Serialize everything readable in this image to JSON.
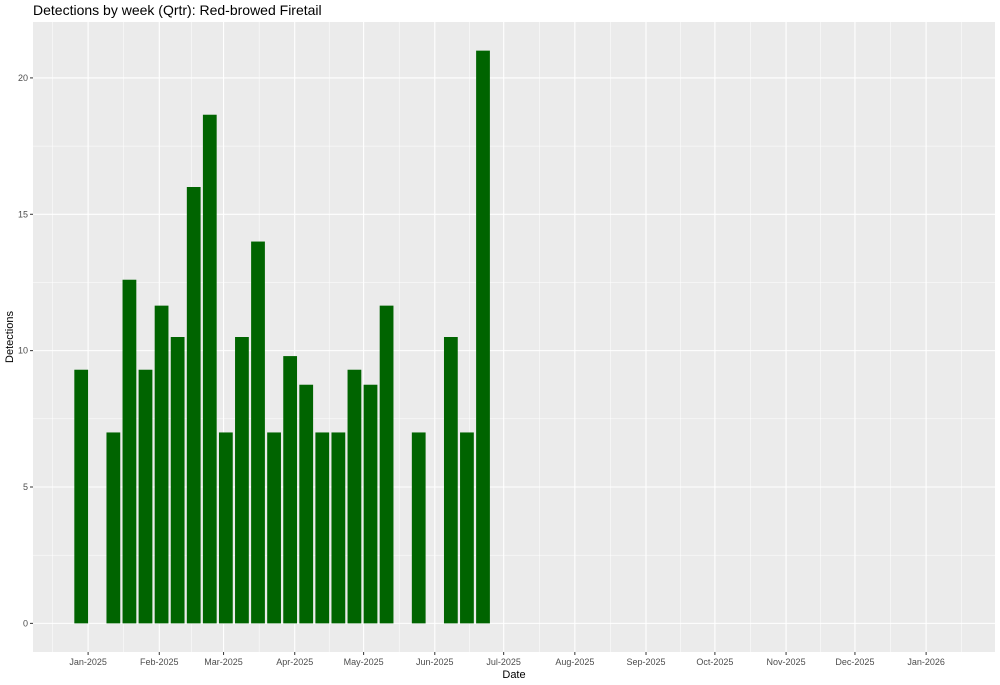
{
  "chart_data": {
    "type": "bar",
    "title": "Detections by week (Qrtr): Red-browed Firetail",
    "xlabel": "Date",
    "ylabel": "Detections",
    "x_axis": {
      "type": "date",
      "range": [
        "2024-12-08",
        "2026-01-31"
      ],
      "tick_dates": [
        "2025-01-01",
        "2025-02-01",
        "2025-03-01",
        "2025-04-01",
        "2025-05-01",
        "2025-06-01",
        "2025-07-01",
        "2025-08-01",
        "2025-09-01",
        "2025-10-01",
        "2025-11-01",
        "2025-12-01",
        "2026-01-01"
      ],
      "tick_labels": [
        "Jan-2025",
        "Feb-2025",
        "Mar-2025",
        "Apr-2025",
        "May-2025",
        "Jun-2025",
        "Jul-2025",
        "Aug-2025",
        "Sep-2025",
        "Oct-2025",
        "Nov-2025",
        "Dec-2025",
        "Jan-2026"
      ]
    },
    "y_axis": {
      "range": [
        -1.05,
        22.05
      ],
      "ticks": [
        0,
        5,
        10,
        15,
        20
      ],
      "tick_labels": [
        "0",
        "5",
        "10",
        "15",
        "20"
      ]
    },
    "grid": true,
    "legend": "none",
    "bar_color": "#006400",
    "panel_color": "#ebebeb",
    "grid_color": "#ffffff",
    "bar_width_days": 6,
    "bars": [
      {
        "date": "2024-12-29",
        "value": 9.3
      },
      {
        "date": "2025-01-12",
        "value": 7.0
      },
      {
        "date": "2025-01-19",
        "value": 12.6
      },
      {
        "date": "2025-01-26",
        "value": 9.3
      },
      {
        "date": "2025-02-02",
        "value": 11.65
      },
      {
        "date": "2025-02-09",
        "value": 10.5
      },
      {
        "date": "2025-02-16",
        "value": 16.0
      },
      {
        "date": "2025-02-23",
        "value": 18.65
      },
      {
        "date": "2025-03-02",
        "value": 7.0
      },
      {
        "date": "2025-03-09",
        "value": 10.5
      },
      {
        "date": "2025-03-16",
        "value": 14.0
      },
      {
        "date": "2025-03-23",
        "value": 7.0
      },
      {
        "date": "2025-03-30",
        "value": 9.8
      },
      {
        "date": "2025-04-06",
        "value": 8.75
      },
      {
        "date": "2025-04-13",
        "value": 7.0
      },
      {
        "date": "2025-04-20",
        "value": 7.0
      },
      {
        "date": "2025-04-27",
        "value": 9.3
      },
      {
        "date": "2025-05-04",
        "value": 8.75
      },
      {
        "date": "2025-05-11",
        "value": 11.65
      },
      {
        "date": "2025-05-25",
        "value": 7.0
      },
      {
        "date": "2025-06-08",
        "value": 10.5
      },
      {
        "date": "2025-06-15",
        "value": 7.0
      },
      {
        "date": "2025-06-22",
        "value": 21.0
      }
    ]
  }
}
